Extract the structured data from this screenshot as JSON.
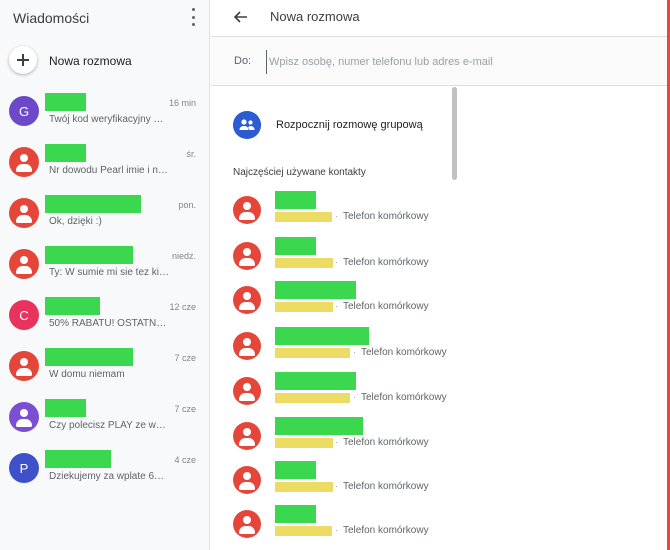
{
  "left": {
    "title": "Wiadomości",
    "new_chat_label": "Nowa rozmowa",
    "conversations": [
      {
        "initial": "G",
        "avatar_color": "#6b49c8",
        "time": "16 min",
        "preview": "Twój kod weryfikacyjny G…"
      },
      {
        "initial": "",
        "avatar_color": "#e5463a",
        "time": "śr.",
        "preview": "Nr dowodu Pearl imie i n…"
      },
      {
        "initial": "",
        "avatar_color": "#e5463a",
        "time": "pon.",
        "preview": "Ok, dzięki :)"
      },
      {
        "initial": "",
        "avatar_color": "#e5463a",
        "time": "niedz.",
        "preview": "Ty: W sumie mi sie tez ki…"
      },
      {
        "initial": "C",
        "avatar_color": "#e8335f",
        "time": "12 cze",
        "preview": "50% RABATU! OSTATNIA …"
      },
      {
        "initial": "",
        "avatar_color": "#e5463a",
        "time": "7 cze",
        "preview": "W domu niemam"
      },
      {
        "initial": "",
        "avatar_color": "#7a4fd1",
        "time": "7 cze",
        "preview": "Czy polecisz PLAY ze wz…"
      },
      {
        "initial": "P",
        "avatar_color": "#3f51c8",
        "time": "4 cze",
        "preview": "Dziekujemy za wplate 67.…"
      }
    ]
  },
  "right": {
    "title": "Nowa rozmowa",
    "to_label": "Do:",
    "to_placeholder": "Wpisz osobę, numer telefonu lub adres e-mail",
    "group_label": "Rozpocznij rozmowę grupową",
    "section_label": "Najczęściej używane kontakty",
    "contact_dot": "·",
    "contacts": [
      {
        "type": "Telefon komórkowy"
      },
      {
        "type": "Telefon komórkowy"
      },
      {
        "type": "Telefon komórkowy"
      },
      {
        "type": "Telefon komórkowy"
      },
      {
        "type": "Telefon komórkowy"
      },
      {
        "type": "Telefon komórkowy"
      },
      {
        "type": "Telefon komórkowy"
      },
      {
        "type": "Telefon komórkowy"
      }
    ]
  },
  "colors": {
    "redaction_name": "#3bd74e",
    "redaction_number": "#ecdc64",
    "contact_avatar": "#e5463a",
    "group_icon": "#2d5bd2"
  }
}
